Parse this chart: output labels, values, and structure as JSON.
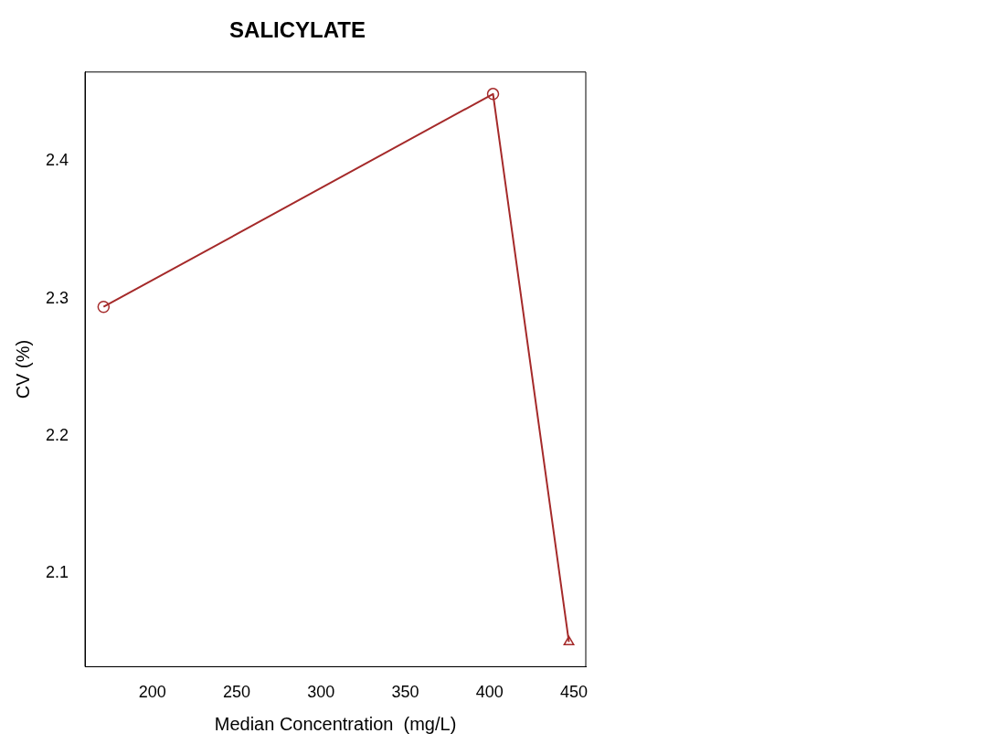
{
  "chart_data": {
    "type": "line",
    "title": "SALICYLATE",
    "xlabel": "Median Concentration  (mg/L)",
    "ylabel": "CV (%)",
    "series": [
      {
        "color": "#a52a2a",
        "x": [
          171,
          402,
          447
        ],
        "values": [
          2.294,
          2.449,
          2.05
        ],
        "marker": "none"
      },
      {
        "type": "scatter",
        "color": "#a52a2a",
        "x": [
          171,
          402
        ],
        "values": [
          2.294,
          2.449
        ],
        "marker": "circle"
      },
      {
        "type": "scatter",
        "color": "#a52a2a",
        "x": [
          447
        ],
        "values": [
          2.05
        ],
        "marker": "triangle"
      }
    ],
    "xlim": [
      160,
      457
    ],
    "xticks": [
      200,
      250,
      300,
      350,
      400,
      450
    ],
    "ylim": [
      2.032,
      2.465
    ],
    "yticks": [
      2.1,
      2.2,
      2.3,
      2.4
    ],
    "grid": false,
    "legend": false
  }
}
